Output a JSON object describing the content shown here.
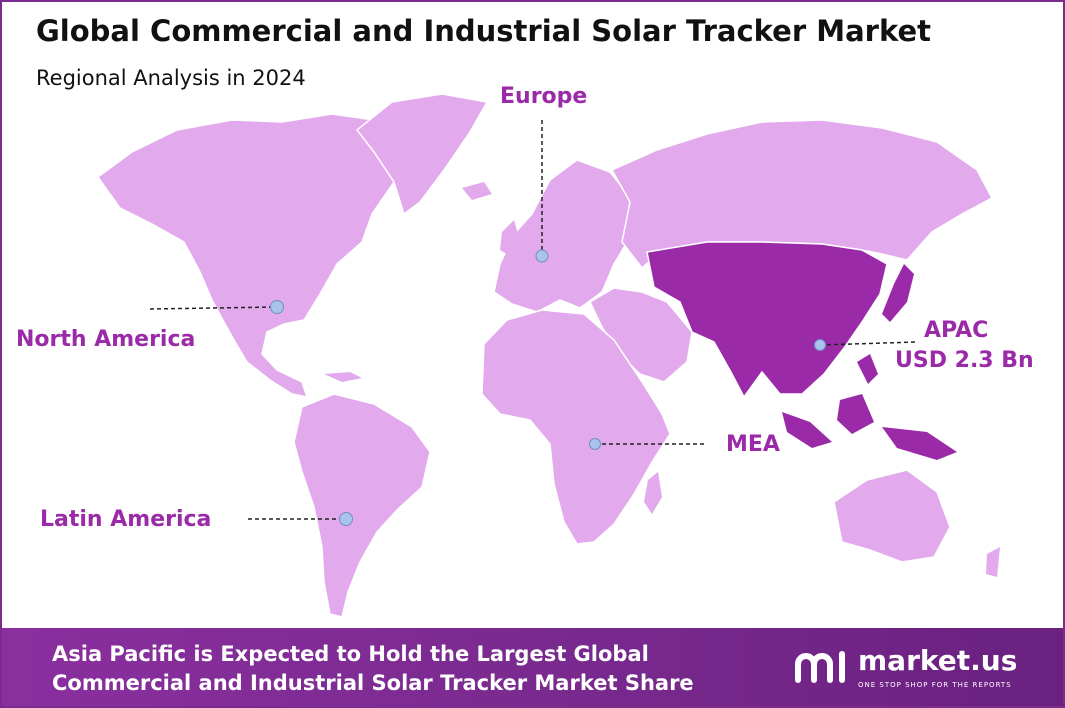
{
  "title": "Global Commercial and Industrial Solar Tracker Market",
  "subtitle": "Regional Analysis in 2024",
  "regions": {
    "europe": "Europe",
    "north_america": "North America",
    "latin_america": "Latin America",
    "mea": "MEA",
    "apac": "APAC",
    "apac_value": "USD 2.3 Bn"
  },
  "highlighted_region": "APAC",
  "colors": {
    "land": "#e2a9ec",
    "highlight": "#9b2aa8",
    "label": "#9a2aa8",
    "marker": "#a9c3ec",
    "footer": "#7b2a8e"
  },
  "footer": {
    "line1": "Asia Pacific is Expected to Hold the Largest Global",
    "line2": "Commercial and Industrial Solar Tracker Market  Share"
  },
  "logo": {
    "name": "market.us",
    "tagline": "ONE STOP SHOP FOR THE REPORTS"
  }
}
